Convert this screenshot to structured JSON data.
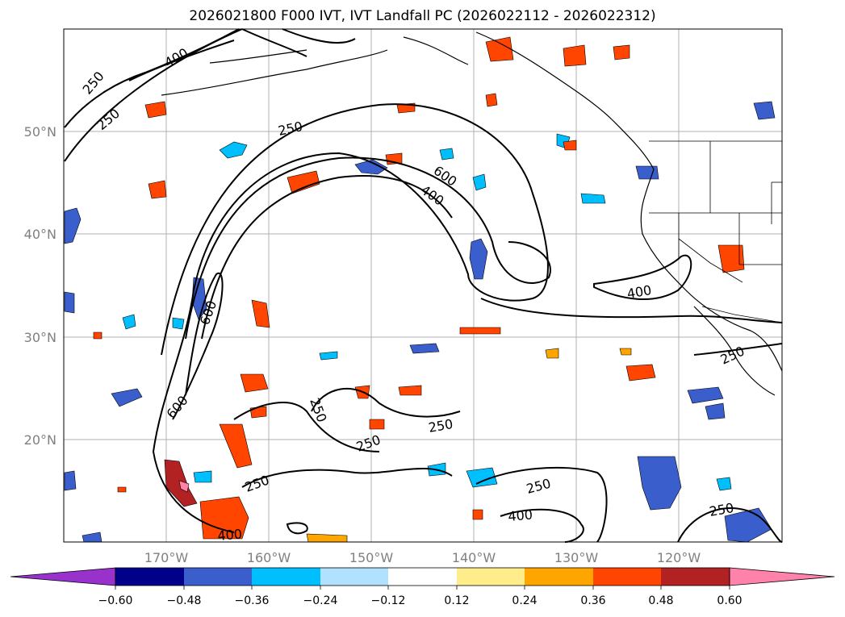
{
  "title": "2026021800 F000 IVT, IVT Landfall PC (2026022112 - 2026022312)",
  "map": {
    "lon_ticks": [
      "170°W",
      "160°W",
      "150°W",
      "140°W",
      "130°W",
      "120°W"
    ],
    "lat_ticks": [
      "50°N",
      "40°N",
      "30°N",
      "20°N"
    ],
    "extent": {
      "lon_min": -180,
      "lon_max": -110,
      "lat_min": 10,
      "lat_max": 60
    },
    "ivt_contour_levels": [
      250,
      400,
      600
    ],
    "contour_labels": [
      {
        "name": "label-250-nw",
        "text": "250"
      },
      {
        "name": "label-400-nw",
        "text": "400"
      },
      {
        "name": "label-250-nw2",
        "text": "250"
      },
      {
        "name": "label-250-arc",
        "text": "250"
      },
      {
        "name": "label-600-arc",
        "text": "600"
      },
      {
        "name": "label-400-arc",
        "text": "400"
      },
      {
        "name": "label-600-west",
        "text": "600"
      },
      {
        "name": "label-600-sw",
        "text": "600"
      },
      {
        "name": "label-250-center",
        "text": "250"
      },
      {
        "name": "label-250-center2",
        "text": "250"
      },
      {
        "name": "label-250-center3",
        "text": "250"
      },
      {
        "name": "label-250-south",
        "text": "250"
      },
      {
        "name": "label-250-south2",
        "text": "250"
      },
      {
        "name": "label-400-south",
        "text": "400"
      },
      {
        "name": "label-400-southwest",
        "text": "400"
      },
      {
        "name": "label-400-east",
        "text": "400"
      },
      {
        "name": "label-250-east",
        "text": "250"
      },
      {
        "name": "label-250-se",
        "text": "250"
      }
    ]
  },
  "colorbar": {
    "tick_labels": [
      "−0.60",
      "−0.48",
      "−0.36",
      "−0.24",
      "−0.12",
      "0.12",
      "0.24",
      "0.36",
      "0.48",
      "0.60"
    ],
    "colors": [
      "#9932cc",
      "#00008b",
      "#3a5fcd",
      "#00bfff",
      "#b0e2ff",
      "#ffffff",
      "#ffec8b",
      "#ffa500",
      "#ff4500",
      "#b22222",
      "#ff82ab"
    ]
  }
}
